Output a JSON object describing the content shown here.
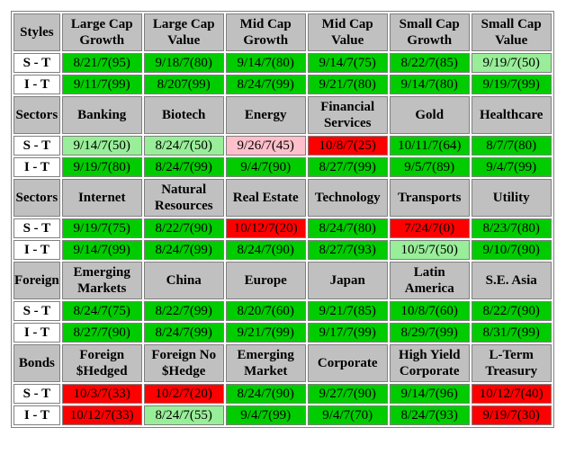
{
  "colors": {
    "green": "#00cc00",
    "light_green": "#99ee99",
    "red": "#ff0000",
    "pink": "#ffc0cb",
    "header_gray": "#c0c0c0"
  },
  "sections": [
    {
      "title": "Styles",
      "headers": [
        "Large Cap Growth",
        "Large Cap Value",
        "Mid Cap Growth",
        "Mid Cap Value",
        "Small Cap Growth",
        "Small Cap Value"
      ],
      "rows": [
        {
          "label": "S - T",
          "cells": [
            {
              "text": "8/21/7(95)",
              "color": "green"
            },
            {
              "text": "9/18/7(80)",
              "color": "green"
            },
            {
              "text": "9/14/7(80)",
              "color": "green"
            },
            {
              "text": "9/14/7(75)",
              "color": "green"
            },
            {
              "text": "8/22/7(85)",
              "color": "green"
            },
            {
              "text": "9/19/7(50)",
              "color": "light_green"
            }
          ]
        },
        {
          "label": "I - T",
          "cells": [
            {
              "text": "9/11/7(99)",
              "color": "green"
            },
            {
              "text": "8/207(99)",
              "color": "green"
            },
            {
              "text": "8/24/7(99)",
              "color": "green"
            },
            {
              "text": "9/21/7(80)",
              "color": "green"
            },
            {
              "text": "9/14/7(80)",
              "color": "green"
            },
            {
              "text": "9/19/7(99)",
              "color": "green"
            }
          ]
        }
      ]
    },
    {
      "title": "Sectors",
      "headers": [
        "Banking",
        "Biotech",
        "Energy",
        "Financial Services",
        "Gold",
        "Healthcare"
      ],
      "rows": [
        {
          "label": "S - T",
          "cells": [
            {
              "text": "9/14/7(50)",
              "color": "light_green"
            },
            {
              "text": "8/24/7(50)",
              "color": "light_green"
            },
            {
              "text": "9/26/7(45)",
              "color": "pink"
            },
            {
              "text": "10/8/7(25)",
              "color": "red"
            },
            {
              "text": "10/11/7(64)",
              "color": "green"
            },
            {
              "text": "8/7/7(80)",
              "color": "green"
            }
          ]
        },
        {
          "label": "I - T",
          "cells": [
            {
              "text": "9/19/7(80)",
              "color": "green"
            },
            {
              "text": "8/24/7(99)",
              "color": "green"
            },
            {
              "text": "9/4/7(90)",
              "color": "green"
            },
            {
              "text": "8/27/7(99)",
              "color": "green"
            },
            {
              "text": "9/5/7(89)",
              "color": "green"
            },
            {
              "text": "9/4/7(99)",
              "color": "green"
            }
          ]
        }
      ]
    },
    {
      "title": "Sectors",
      "headers": [
        "Internet",
        "Natural Resources",
        "Real Estate",
        "Technology",
        "Transports",
        "Utility"
      ],
      "rows": [
        {
          "label": "S - T",
          "cells": [
            {
              "text": "9/19/7(75)",
              "color": "green"
            },
            {
              "text": "8/22/7(90)",
              "color": "green"
            },
            {
              "text": "10/12/7(20)",
              "color": "red"
            },
            {
              "text": "8/24/7(80)",
              "color": "green"
            },
            {
              "text": "7/24/7(0)",
              "color": "red"
            },
            {
              "text": "8/23/7(80)",
              "color": "green"
            }
          ]
        },
        {
          "label": "I - T",
          "cells": [
            {
              "text": "9/14/7(99)",
              "color": "green"
            },
            {
              "text": "8/24/7(99)",
              "color": "green"
            },
            {
              "text": "8/24/7(90)",
              "color": "green"
            },
            {
              "text": "8/27/7(93)",
              "color": "green"
            },
            {
              "text": "10/5/7(50)",
              "color": "light_green"
            },
            {
              "text": "9/10/7(90)",
              "color": "green"
            }
          ]
        }
      ]
    },
    {
      "title": "Foreign",
      "headers": [
        "Emerging Markets",
        "China",
        "Europe",
        "Japan",
        "Latin America",
        "S.E. Asia"
      ],
      "rows": [
        {
          "label": "S - T",
          "cells": [
            {
              "text": "8/24/7(75)",
              "color": "green"
            },
            {
              "text": "8/22/7(99)",
              "color": "green"
            },
            {
              "text": "8/20/7(60)",
              "color": "green"
            },
            {
              "text": "9/21/7(85)",
              "color": "green"
            },
            {
              "text": "10/8/7(60)",
              "color": "green"
            },
            {
              "text": "8/22/7(90)",
              "color": "green"
            }
          ]
        },
        {
          "label": "I - T",
          "cells": [
            {
              "text": "8/27/7(90)",
              "color": "green"
            },
            {
              "text": "8/24/7(99)",
              "color": "green"
            },
            {
              "text": "9/21/7(99)",
              "color": "green"
            },
            {
              "text": "9/17/7(99)",
              "color": "green"
            },
            {
              "text": "8/29/7(99)",
              "color": "green"
            },
            {
              "text": "8/31/7(99)",
              "color": "green"
            }
          ]
        }
      ]
    },
    {
      "title": "Bonds",
      "headers": [
        "Foreign $Hedged",
        "Foreign No $Hedge",
        "Emerging Market",
        "Corporate",
        "High Yield Corporate",
        "L-Term Treasury"
      ],
      "rows": [
        {
          "label": "S - T",
          "cells": [
            {
              "text": "10/3/7(33)",
              "color": "red"
            },
            {
              "text": "10/2/7(20)",
              "color": "red"
            },
            {
              "text": "8/24/7(90)",
              "color": "green"
            },
            {
              "text": "9/27/7(90)",
              "color": "green"
            },
            {
              "text": "9/14/7(96)",
              "color": "green"
            },
            {
              "text": "10/12/7(40)",
              "color": "red"
            }
          ]
        },
        {
          "label": "I - T",
          "cells": [
            {
              "text": "10/12/7(33)",
              "color": "red"
            },
            {
              "text": "8/24/7(55)",
              "color": "light_green"
            },
            {
              "text": "9/4/7(99)",
              "color": "green"
            },
            {
              "text": "9/4/7(70)",
              "color": "green"
            },
            {
              "text": "8/24/7(93)",
              "color": "green"
            },
            {
              "text": "9/19/7(30)",
              "color": "red"
            }
          ]
        }
      ]
    }
  ]
}
